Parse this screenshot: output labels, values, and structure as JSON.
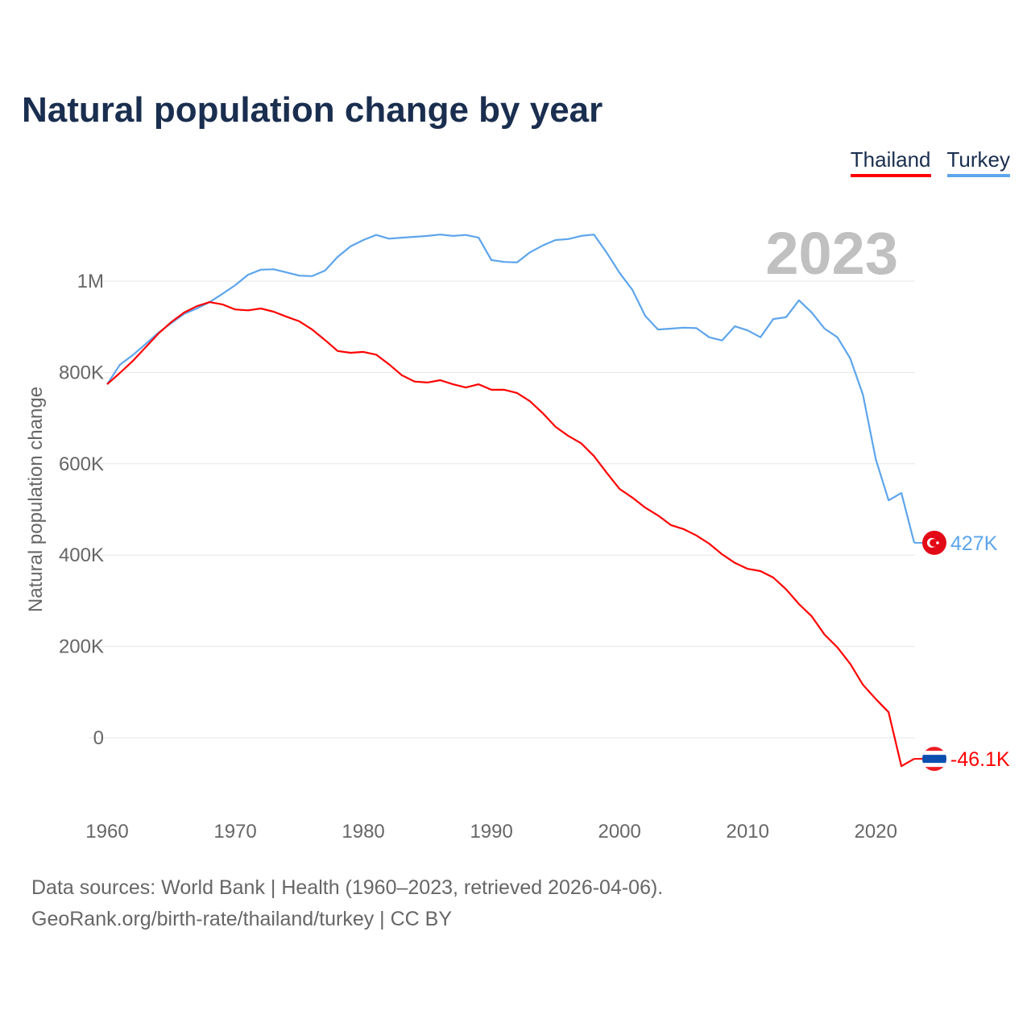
{
  "title": "Natural population change by year",
  "legend": [
    {
      "label": "Thailand"
    },
    {
      "label": "Turkey"
    }
  ],
  "year_label": "2023",
  "sources": {
    "line1": "Data sources: World Bank | Health (1960–2023, retrieved 2026-04-06).",
    "line2": "GeoRank.org/birth-rate/thailand/turkey | CC BY"
  },
  "chart_data": {
    "type": "line",
    "title": "Natural population change by year",
    "xlabel": "",
    "ylabel": "Natural population change",
    "xlim": [
      1960,
      2023
    ],
    "ylim": [
      -100000,
      1150000
    ],
    "grid": true,
    "legend_position": "top-right",
    "x_ticks": [
      1960,
      1970,
      1980,
      1990,
      2000,
      2010,
      2020
    ],
    "y_ticks": [
      {
        "v": 0,
        "label": "0"
      },
      {
        "v": 200000,
        "label": "200K"
      },
      {
        "v": 400000,
        "label": "400K"
      },
      {
        "v": 600000,
        "label": "600K"
      },
      {
        "v": 800000,
        "label": "800K"
      },
      {
        "v": 1000000,
        "label": "1M"
      }
    ],
    "x_start": 1960,
    "series": [
      {
        "name": "Thailand",
        "color": "#ff0000",
        "end_label": "-46.1K",
        "values": [
          774,
          799,
          825,
          855,
          885,
          910,
          931,
          945,
          954,
          949,
          938,
          936,
          940,
          933,
          922,
          912,
          894,
          871,
          847,
          843,
          845,
          839,
          818,
          794,
          780,
          778,
          783,
          774,
          767,
          774,
          762,
          762,
          755,
          737,
          711,
          681,
          661,
          645,
          617,
          580,
          545,
          526,
          504,
          487,
          466,
          457,
          443,
          425,
          402,
          383,
          370,
          365,
          351,
          325,
          293,
          266,
          226,
          198,
          162,
          116,
          85,
          56,
          -62,
          -46.1
        ]
      },
      {
        "name": "Turkey",
        "color": "#5da5ec",
        "end_label": "427K",
        "values": [
          774,
          817,
          838,
          862,
          887,
          908,
          928,
          940,
          954,
          972,
          991,
          1014,
          1025,
          1026,
          1019,
          1012,
          1011,
          1023,
          1053,
          1076,
          1090,
          1101,
          1093,
          1095,
          1097,
          1099,
          1102,
          1099,
          1101,
          1095,
          1046,
          1042,
          1041,
          1063,
          1078,
          1090,
          1092,
          1099,
          1102,
          1062,
          1018,
          981,
          924,
          894,
          896,
          898,
          897,
          877,
          870,
          901,
          892,
          877,
          917,
          921,
          958,
          931,
          896,
          877,
          831,
          751,
          610,
          520,
          536,
          427
        ]
      }
    ],
    "value_unit": "thousands"
  }
}
